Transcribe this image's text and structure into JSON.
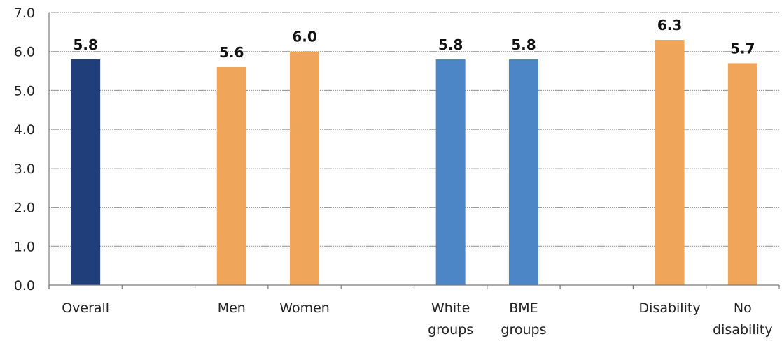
{
  "chart_data": {
    "type": "bar",
    "categories": [
      {
        "lines": [
          "Overall"
        ],
        "value": 5.8,
        "label": "5.8",
        "color": "#1f3e7a"
      },
      {
        "lines": [],
        "value": null,
        "label": "",
        "color": ""
      },
      {
        "lines": [
          "Men"
        ],
        "value": 5.6,
        "label": "5.6",
        "color": "#f0a65a"
      },
      {
        "lines": [
          "Women"
        ],
        "value": 6.0,
        "label": "6.0",
        "color": "#f0a65a"
      },
      {
        "lines": [],
        "value": null,
        "label": "",
        "color": ""
      },
      {
        "lines": [
          "White",
          "groups"
        ],
        "value": 5.8,
        "label": "5.8",
        "color": "#4d86c7"
      },
      {
        "lines": [
          "BME",
          "groups"
        ],
        "value": 5.8,
        "label": "5.8",
        "color": "#4d86c7"
      },
      {
        "lines": [],
        "value": null,
        "label": "",
        "color": ""
      },
      {
        "lines": [
          "Disability"
        ],
        "value": 6.3,
        "label": "6.3",
        "color": "#f0a65a"
      },
      {
        "lines": [
          "No",
          "disability"
        ],
        "value": 5.7,
        "label": "5.7",
        "color": "#f0a65a"
      }
    ],
    "ylim": [
      0,
      7
    ],
    "yticks": [
      "0.0",
      "1.0",
      "2.0",
      "3.0",
      "4.0",
      "5.0",
      "6.0",
      "7.0"
    ],
    "grid": true,
    "title": "",
    "xlabel": "",
    "ylabel": ""
  }
}
